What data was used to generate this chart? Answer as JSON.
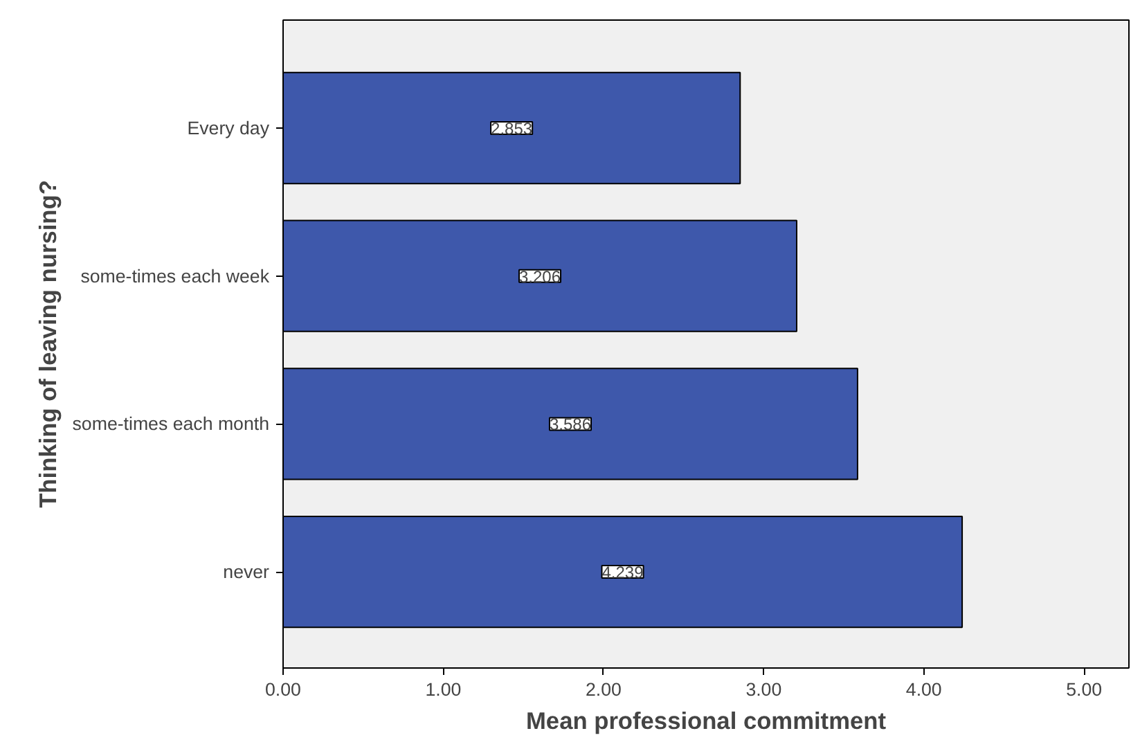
{
  "chart_data": {
    "type": "bar",
    "orientation": "horizontal",
    "xlabel": "Mean professional commitment",
    "ylabel": "Thinking of leaving nursing?",
    "categories": [
      "Every day",
      "some-times each week",
      "some-times each month",
      "never"
    ],
    "values": [
      2.853,
      3.206,
      3.586,
      4.239
    ],
    "color": "#3e58ab",
    "data_labels": true,
    "grid": false,
    "xlim": [
      0,
      5.28
    ],
    "xticks": [
      {
        "value": 0,
        "label": "0.00"
      },
      {
        "value": 1,
        "label": "1.00"
      },
      {
        "value": 2,
        "label": "2.00"
      },
      {
        "value": 3,
        "label": "3.00"
      },
      {
        "value": 4,
        "label": "4.00"
      },
      {
        "value": 5,
        "label": "5.00"
      }
    ]
  }
}
